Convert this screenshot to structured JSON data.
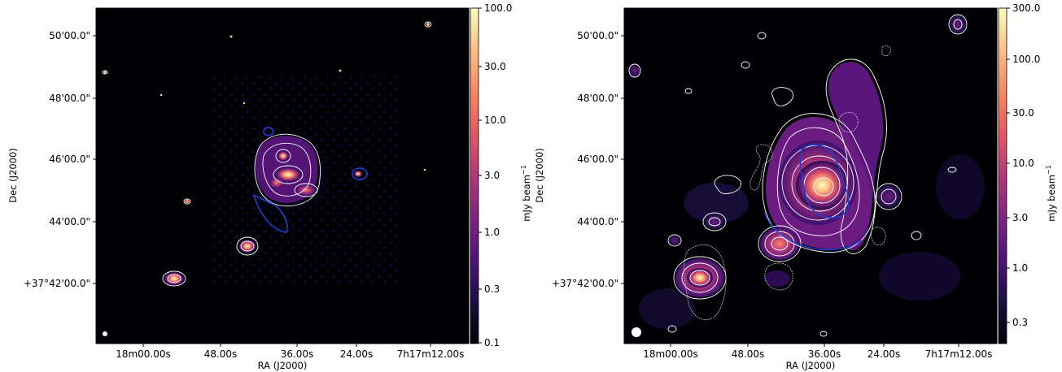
{
  "panels": [
    {
      "id": "left",
      "xlabel": "RA (J2000)",
      "ylabel": "Dec (J2000)",
      "x_ticks": [
        "18m00.00s",
        "48.00s",
        "36.00s",
        "24.00s",
        "7h17m12.00s"
      ],
      "y_ticks": [
        "50'00.0\"",
        "48'00.0\"",
        "46'00.0\"",
        "44'00.0\"",
        "+37°42'00.0\""
      ],
      "colorbar": {
        "label": "mJy beam",
        "label_sup": "−1",
        "scale": "log",
        "ticks": [
          "100.0",
          "30.0",
          "10.0",
          "3.0",
          "1.0",
          "0.3",
          "0.1"
        ]
      },
      "colormap": "magma",
      "contour_color": "#ffffff",
      "region_color": "#1f3fd0"
    },
    {
      "id": "right",
      "xlabel": "RA (J2000)",
      "ylabel": "Dec (J2000)",
      "x_ticks": [
        "18m00.00s",
        "48.00s",
        "36.00s",
        "24.00s",
        "7h17m12.00s"
      ],
      "y_ticks": [
        "50'00.0\"",
        "48'00.0\"",
        "46'00.0\"",
        "44'00.0\"",
        "+37°42'00.0\""
      ],
      "colorbar": {
        "label": "mJy beam",
        "label_sup": "−1",
        "scale": "log",
        "ticks": [
          "300.0",
          "100.0",
          "30.0",
          "10.0",
          "3.0",
          "1.0",
          "0.3"
        ]
      },
      "colormap": "magma",
      "contour_color": "#ffffff",
      "region_color": "#1f3fd0"
    }
  ]
}
